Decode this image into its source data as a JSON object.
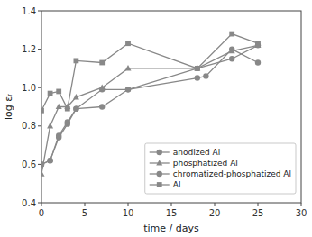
{
  "chart_data": {
    "type": "line",
    "xlabel": "time / days",
    "ylabel": "log εᵣ",
    "series": [
      {
        "name": "anodized Al",
        "color": "#888888",
        "marker": "circle",
        "x": [
          0,
          1,
          2,
          3,
          4,
          7,
          10,
          18,
          19,
          22,
          25
        ],
        "values": [
          0.6,
          0.62,
          0.74,
          0.81,
          0.89,
          0.9,
          0.99,
          1.05,
          1.06,
          1.2,
          1.13
        ]
      },
      {
        "name": "phosphatized Al",
        "color": "#888888",
        "marker": "triangle",
        "x": [
          0,
          1,
          2,
          3,
          4,
          7,
          10,
          18,
          22,
          25
        ],
        "values": [
          0.55,
          0.8,
          0.9,
          0.9,
          0.95,
          1.0,
          1.1,
          1.1,
          1.19,
          1.22
        ]
      },
      {
        "name": "chromatized-phosphatized Al",
        "color": "#888888",
        "marker": "circle",
        "x": [
          0,
          1,
          2,
          3,
          4,
          7,
          10,
          18,
          22,
          25
        ],
        "values": [
          0.6,
          0.62,
          0.75,
          0.82,
          0.89,
          0.99,
          0.99,
          1.1,
          1.15,
          1.22
        ]
      },
      {
        "name": "Al",
        "color": "#888888",
        "marker": "square",
        "x": [
          0,
          1,
          2,
          3,
          4,
          7,
          10,
          18,
          22,
          25
        ],
        "values": [
          0.88,
          0.97,
          0.98,
          0.89,
          1.14,
          1.13,
          1.23,
          1.1,
          1.28,
          1.23
        ]
      }
    ],
    "xlim": [
      0,
      30
    ],
    "ylim": [
      0.4,
      1.4
    ],
    "xticks": [
      0,
      5,
      10,
      15,
      20,
      25,
      30
    ],
    "yticks": [
      0.4,
      0.6,
      0.8,
      {
        "value": 1.0,
        "label": "1.0"
      },
      1.2,
      1.4
    ],
    "grid": false,
    "legend": "lower right"
  }
}
